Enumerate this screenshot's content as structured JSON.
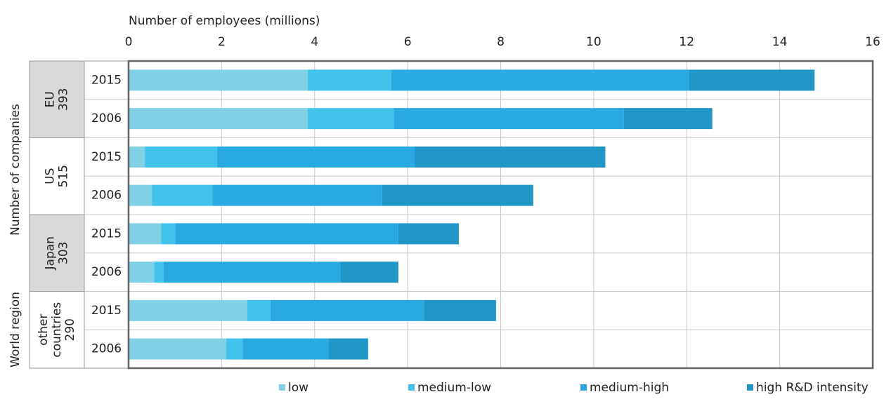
{
  "chart_data": {
    "type": "stacked-barh",
    "x_label": "Number of employees (millions)",
    "row_axis_labels": [
      "World region",
      "Number of companies"
    ],
    "groups": [
      {
        "name_lines": [
          "EU"
        ],
        "companies": 393
      },
      {
        "name_lines": [
          "US"
        ],
        "companies": 515
      },
      {
        "name_lines": [
          "Japan"
        ],
        "companies": 303
      },
      {
        "name_lines": [
          "other",
          "countries"
        ],
        "companies": 290
      }
    ],
    "categories": [
      "2015",
      "2006",
      "2015",
      "2006",
      "2015",
      "2006",
      "2015",
      "2006"
    ],
    "series": [
      {
        "name": "low",
        "color": "#80d1e6",
        "values": [
          3.85,
          3.85,
          0.35,
          0.5,
          0.7,
          0.55,
          2.55,
          2.1
        ]
      },
      {
        "name": "medium-low",
        "color": "#40c2ea",
        "values": [
          1.8,
          1.85,
          1.55,
          1.3,
          0.3,
          0.2,
          0.5,
          0.35
        ]
      },
      {
        "name": "medium-high",
        "color": "#29a9e1",
        "values": [
          6.4,
          4.95,
          4.25,
          3.65,
          4.8,
          3.8,
          3.3,
          1.85
        ]
      },
      {
        "name": "high R&D intensity",
        "color": "#1f96c6",
        "values": [
          2.7,
          1.9,
          4.1,
          3.25,
          1.3,
          1.25,
          1.55,
          0.85
        ]
      }
    ],
    "xlim": [
      0,
      16
    ],
    "xticks": [
      0,
      2,
      4,
      6,
      8,
      10,
      12,
      14,
      16
    ],
    "grid": true
  }
}
